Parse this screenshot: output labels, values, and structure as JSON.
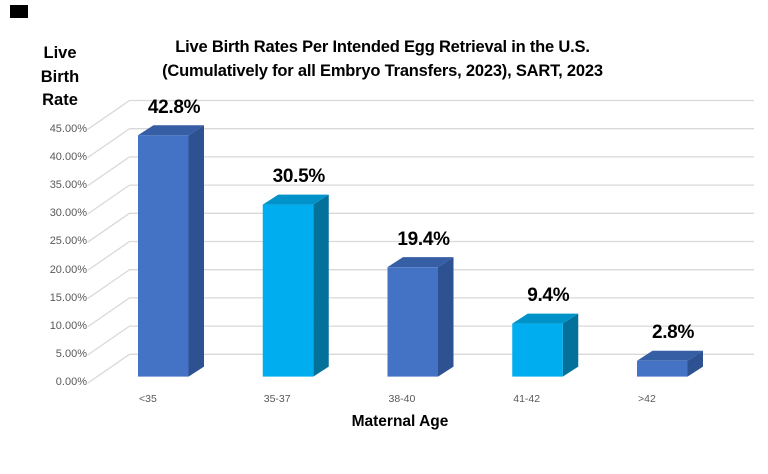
{
  "chart_data": {
    "type": "bar",
    "style": "3d-column",
    "title_line1": "Live Birth Rates Per Intended Egg Retrieval in the U.S.",
    "title_line2": "(Cumulatively for all Embryo Transfers, 2023), SART, 2023",
    "ylabel": "Live Birth Rate",
    "ylabel_lines": [
      "Live",
      "Birth",
      "Rate"
    ],
    "xlabel": "Maternal Age",
    "categories": [
      "<35",
      "35-37",
      "38-40",
      "41-42",
      ">42"
    ],
    "values": [
      42.8,
      30.5,
      19.4,
      9.4,
      2.8
    ],
    "value_labels": [
      "42.8%",
      "30.5%",
      "19.4%",
      "9.4%",
      "2.8%"
    ],
    "y_ticks": [
      "0.00%",
      "5.00%",
      "10.00%",
      "15.00%",
      "20.00%",
      "25.00%",
      "30.00%",
      "35.00%",
      "40.00%",
      "45.00%"
    ],
    "ylim": [
      0,
      45
    ],
    "grid": true,
    "legend": false,
    "color_pattern": [
      "blue",
      "cyan",
      "blue",
      "cyan",
      "blue"
    ],
    "palette": {
      "blue": {
        "front": "#4472C4",
        "top": "#355EA5",
        "side": "#2E5191"
      },
      "cyan": {
        "front": "#00AEEF",
        "top": "#0092C8",
        "side": "#04719B"
      }
    },
    "colors": {
      "gridline": "#D9D9D9",
      "tick_text": "#595959",
      "category_text": "#595959",
      "data_label": "#000000",
      "title": "#000000",
      "background": "#FFFFFF"
    }
  }
}
